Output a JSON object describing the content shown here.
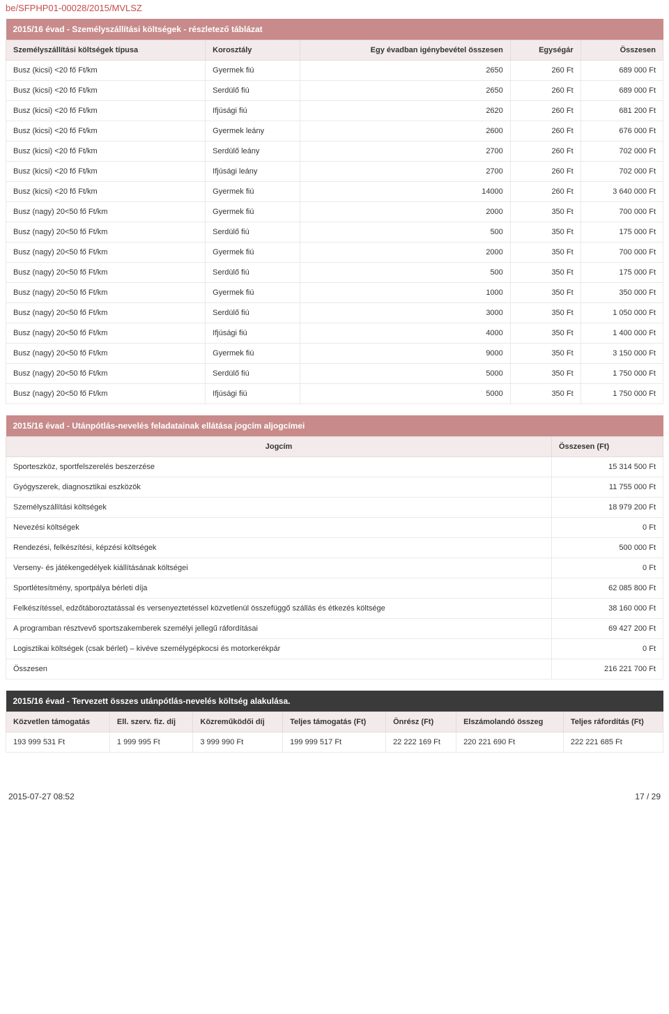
{
  "page_ref": "be/SFPHP01-00028/2015/MVLSZ",
  "table1": {
    "title": "2015/16 évad - Személyszállítási költségek - részletező táblázat",
    "columns": [
      "Személyszállítási költségek típusa",
      "Korosztály",
      "Egy évadban igénybevétel összesen",
      "Egységár",
      "Összesen"
    ],
    "col_align": [
      "left",
      "left",
      "right",
      "right",
      "right"
    ],
    "rows": [
      [
        "Busz (kicsi) <20 fő Ft/km",
        "Gyermek fiú",
        "2650",
        "260 Ft",
        "689 000 Ft"
      ],
      [
        "Busz (kicsi) <20 fő Ft/km",
        "Serdülő fiú",
        "2650",
        "260 Ft",
        "689 000 Ft"
      ],
      [
        "Busz (kicsi) <20 fő Ft/km",
        "Ifjúsági fiú",
        "2620",
        "260 Ft",
        "681 200 Ft"
      ],
      [
        "Busz (kicsi) <20 fő Ft/km",
        "Gyermek leány",
        "2600",
        "260 Ft",
        "676 000 Ft"
      ],
      [
        "Busz (kicsi) <20 fő Ft/km",
        "Serdülő leány",
        "2700",
        "260 Ft",
        "702 000 Ft"
      ],
      [
        "Busz (kicsi) <20 fő Ft/km",
        "Ifjúsági leány",
        "2700",
        "260 Ft",
        "702 000 Ft"
      ],
      [
        "Busz (kicsi) <20 fő Ft/km",
        "Gyermek fiú",
        "14000",
        "260 Ft",
        "3 640 000 Ft"
      ],
      [
        "Busz (nagy) 20<50 fő Ft/km",
        "Gyermek fiú",
        "2000",
        "350 Ft",
        "700 000 Ft"
      ],
      [
        "Busz (nagy) 20<50 fő Ft/km",
        "Serdülő fiú",
        "500",
        "350 Ft",
        "175 000 Ft"
      ],
      [
        "Busz (nagy) 20<50 fő Ft/km",
        "Gyermek fiú",
        "2000",
        "350 Ft",
        "700 000 Ft"
      ],
      [
        "Busz (nagy) 20<50 fő Ft/km",
        "Serdülő fiú",
        "500",
        "350 Ft",
        "175 000 Ft"
      ],
      [
        "Busz (nagy) 20<50 fő Ft/km",
        "Gyermek fiú",
        "1000",
        "350 Ft",
        "350 000 Ft"
      ],
      [
        "Busz (nagy) 20<50 fő Ft/km",
        "Serdülő fiú",
        "3000",
        "350 Ft",
        "1 050 000 Ft"
      ],
      [
        "Busz (nagy) 20<50 fő Ft/km",
        "Ifjúsági fiú",
        "4000",
        "350 Ft",
        "1 400 000 Ft"
      ],
      [
        "Busz (nagy) 20<50 fő Ft/km",
        "Gyermek fiú",
        "9000",
        "350 Ft",
        "3 150 000 Ft"
      ],
      [
        "Busz (nagy) 20<50 fő Ft/km",
        "Serdülő fiú",
        "5000",
        "350 Ft",
        "1 750 000 Ft"
      ],
      [
        "Busz (nagy) 20<50 fő Ft/km",
        "Ifjúsági fiú",
        "5000",
        "350 Ft",
        "1 750 000 Ft"
      ]
    ]
  },
  "table2": {
    "title": "2015/16 évad - Utánpótlás-nevelés feladatainak ellátása jogcím aljogcímei",
    "columns": [
      "Jogcím",
      "Összesen (Ft)"
    ],
    "col_align": [
      "left",
      "right"
    ],
    "rows": [
      [
        "Sporteszköz, sportfelszerelés beszerzése",
        "15 314 500 Ft"
      ],
      [
        "Gyógyszerek, diagnosztikai eszközök",
        "11 755 000 Ft"
      ],
      [
        "Személyszállítási költségek",
        "18 979 200 Ft"
      ],
      [
        "Nevezési költségek",
        "0 Ft"
      ],
      [
        "Rendezési, felkészítési, képzési költségek",
        "500 000 Ft"
      ],
      [
        "Verseny- és játékengedélyek kiállításának költségei",
        "0 Ft"
      ],
      [
        "Sportlétesítmény, sportpálya bérleti díja",
        "62 085 800 Ft"
      ],
      [
        "Felkészítéssel, edzőtáboroztatással és versenyeztetéssel közvetlenül összefüggő szállás és étkezés költsége",
        "38 160 000 Ft"
      ],
      [
        "A programban résztvevő sportszakemberek személyi jellegű ráfordításai",
        "69 427 200 Ft"
      ],
      [
        "Logisztikai költségek (csak bérlet) – kivéve személygépkocsi és motorkerékpár",
        "0 Ft"
      ],
      [
        "Összesen",
        "216 221 700 Ft"
      ]
    ]
  },
  "table3": {
    "title": "2015/16 évad - Tervezett összes utánpótlás-nevelés költség alakulása.",
    "columns": [
      "Közvetlen támogatás",
      "Ell. szerv. fiz. díj",
      "Közreműködői díj",
      "Teljes támogatás (Ft)",
      "Önrész (Ft)",
      "Elszámolandó összeg",
      "Teljes ráfordítás (Ft)"
    ],
    "col_align": [
      "left",
      "left",
      "left",
      "left",
      "left",
      "left",
      "left"
    ],
    "rows": [
      [
        "193 999 531 Ft",
        "1 999 995 Ft",
        "3 999 990 Ft",
        "199 999 517 Ft",
        "22 222 169 Ft",
        "220 221 690 Ft",
        "222 221 685 Ft"
      ]
    ]
  },
  "footer": {
    "left": "2015-07-27 08:52",
    "right": "17 / 29"
  },
  "colors": {
    "title_bg": "#c88a8a",
    "title_fg": "#ffffff",
    "header_bg": "#f3ebeb",
    "border": "#eee7e7",
    "ref": "#c94a4a",
    "dark_title_bg": "#3a3a3a"
  }
}
